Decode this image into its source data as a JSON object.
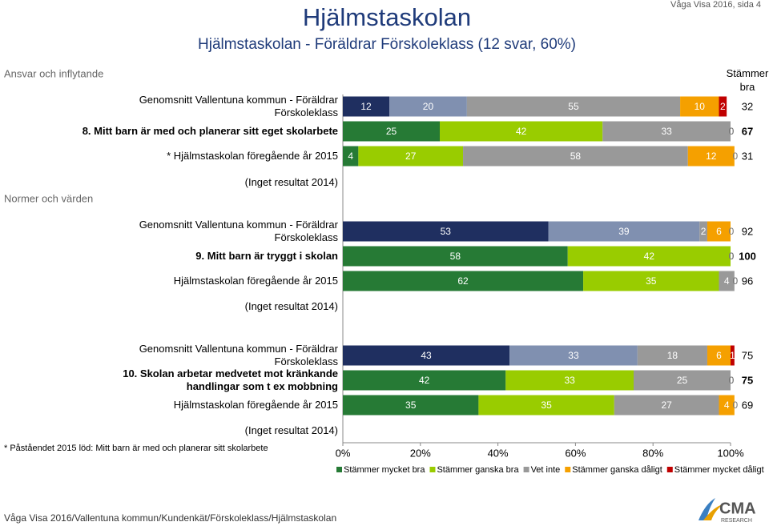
{
  "header": {
    "title": "Hjälmstaskolan",
    "subtitle": "Hjälmstaskolan - Föräldrar Förskoleklass (12 svar, 60%)",
    "page_ref": "Våga Visa 2016, sida 4"
  },
  "chart_data": {
    "type": "bar",
    "orientation": "horizontal",
    "stacked": true,
    "total_header": "Stämmer bra",
    "series": [
      {
        "name": "Stämmer mycket bra",
        "color": "#267a35"
      },
      {
        "name": "Stämmer ganska bra",
        "color": "#99cc00"
      },
      {
        "name": "Vet inte",
        "color": "#999999"
      },
      {
        "name": "Stämmer ganska dåligt",
        "color": "#f5a000"
      },
      {
        "name": "Stämmer mycket dåligt",
        "color": "#c00000"
      }
    ],
    "sections": [
      {
        "name": "Ansvar och inflytande",
        "rows": [
          {
            "label": "Genomsnitt Vallentuna kommun - Föräldrar Förskoleklass",
            "values": [
              12,
              20,
              55,
              10,
              2
            ],
            "total": 32,
            "colors": [
              "#1f2f60",
              "#8090b0",
              "#999999",
              "#f5a000",
              "#c00000"
            ]
          },
          {
            "label": "8. Mitt barn är med och planerar sitt eget skolarbete",
            "values": [
              25,
              42,
              33,
              0,
              0
            ],
            "total": 67,
            "highlight": true,
            "colors": [
              "#267a35",
              "#99cc00",
              "#999999",
              "#f5a000",
              "#c00000"
            ]
          },
          {
            "label": "* Hjälmstaskolan föregående år 2015",
            "values": [
              4,
              27,
              58,
              12,
              0
            ],
            "total": 31,
            "colors": [
              "#267a35",
              "#99cc00",
              "#999999",
              "#f5a000",
              "#c00000"
            ]
          },
          {
            "label": "(Inget resultat 2014)"
          }
        ]
      },
      {
        "name": "Normer och värden",
        "rows": [
          {
            "label": "Genomsnitt Vallentuna kommun - Föräldrar Förskoleklass",
            "values": [
              53,
              39,
              2,
              6,
              0
            ],
            "total": 92,
            "colors": [
              "#1f2f60",
              "#8090b0",
              "#999999",
              "#f5a000",
              "#c00000"
            ]
          },
          {
            "label": "9. Mitt barn är tryggt i skolan",
            "values": [
              58,
              42,
              0,
              0,
              0
            ],
            "total": 100,
            "highlight": true,
            "colors": [
              "#267a35",
              "#99cc00",
              "#999999",
              "#f5a000",
              "#c00000"
            ]
          },
          {
            "label": "Hjälmstaskolan föregående år 2015",
            "values": [
              62,
              35,
              4,
              0,
              0
            ],
            "total": 96,
            "colors": [
              "#267a35",
              "#99cc00",
              "#999999",
              "#f5a000",
              "#c00000"
            ]
          },
          {
            "label": "(Inget resultat 2014)"
          },
          {
            "label": "Genomsnitt Vallentuna kommun - Föräldrar Förskoleklass",
            "values": [
              43,
              33,
              18,
              6,
              1
            ],
            "total": 75,
            "colors": [
              "#1f2f60",
              "#8090b0",
              "#999999",
              "#f5a000",
              "#c00000"
            ]
          },
          {
            "label": "10. Skolan arbetar medvetet mot kränkande handlingar som t ex mobbning",
            "values": [
              42,
              33,
              25,
              0,
              0
            ],
            "total": 75,
            "highlight": true,
            "colors": [
              "#267a35",
              "#99cc00",
              "#999999",
              "#f5a000",
              "#c00000"
            ]
          },
          {
            "label": "Hjälmstaskolan föregående år 2015",
            "values": [
              35,
              35,
              27,
              4,
              0
            ],
            "total": 69,
            "colors": [
              "#267a35",
              "#99cc00",
              "#999999",
              "#f5a000",
              "#c00000"
            ]
          },
          {
            "label": "(Inget resultat 2014)"
          }
        ]
      }
    ],
    "xlim": [
      0,
      100
    ],
    "xticks": [
      {
        "value": 0,
        "label": "0%"
      },
      {
        "value": 20,
        "label": "20%"
      },
      {
        "value": 40,
        "label": "40%"
      },
      {
        "value": 60,
        "label": "60%"
      },
      {
        "value": 80,
        "label": "80%"
      },
      {
        "value": 100,
        "label": "100%"
      }
    ]
  },
  "footnote": "* Påståendet 2015 löd: Mitt barn är med och planerar sitt skolarbete",
  "footer": "Våga Visa 2016/Vallentuna kommun/Kundenkät/Förskoleklass/Hjälmstaskolan",
  "logo": {
    "name": "CMA",
    "tagline": "RESEARCH"
  }
}
